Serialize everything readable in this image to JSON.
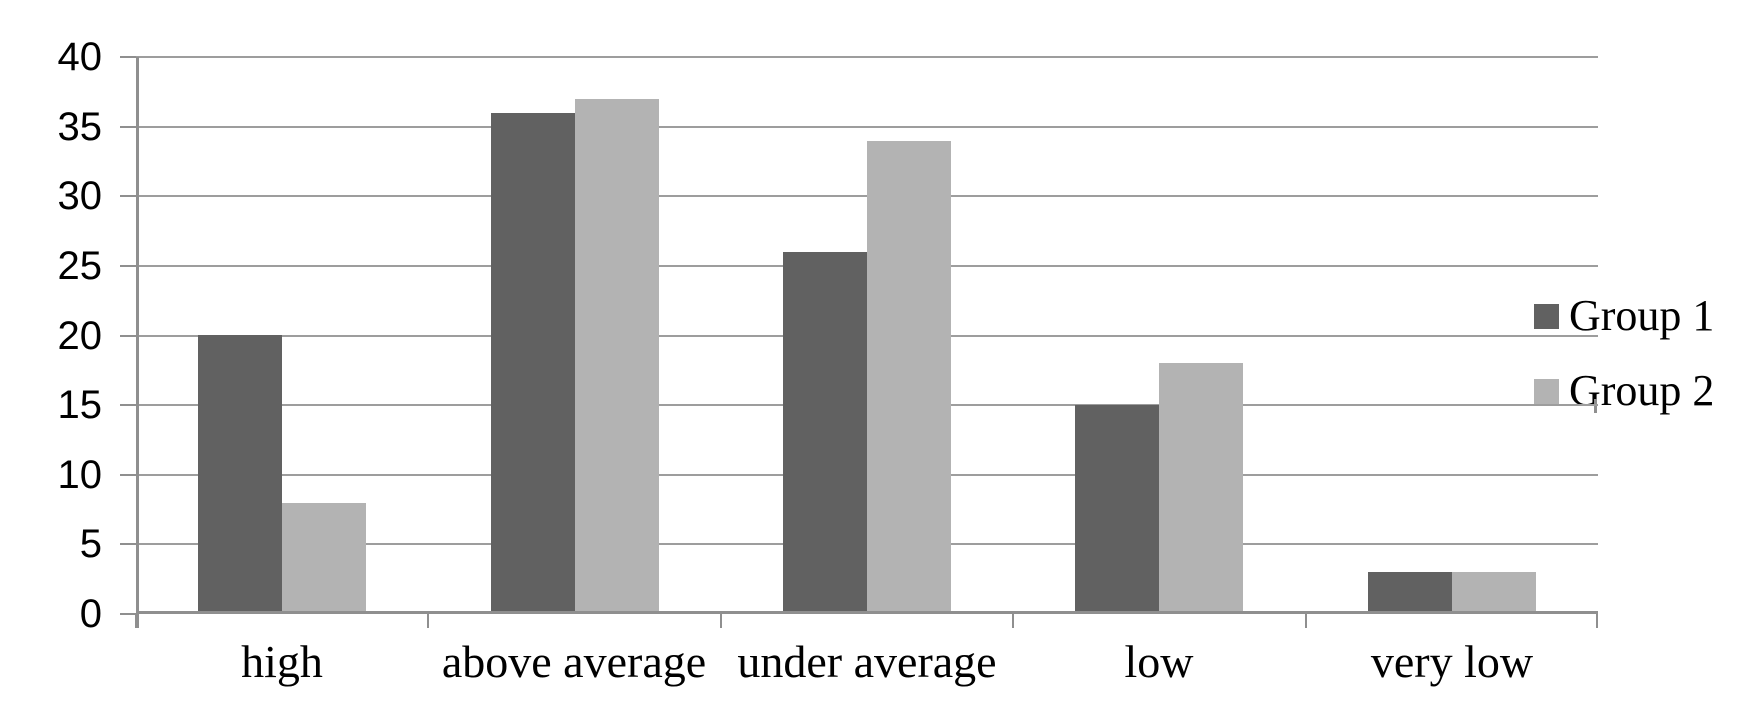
{
  "chart_data": {
    "type": "bar",
    "categories": [
      "high",
      "above average",
      "under average",
      "low",
      "very low"
    ],
    "series": [
      {
        "name": "Group 1",
        "color": "#616161",
        "values": [
          20,
          36,
          26,
          15,
          3
        ]
      },
      {
        "name": "Group 2",
        "color": "#b3b3b3",
        "values": [
          8,
          37,
          34,
          18,
          3
        ]
      }
    ],
    "ylim": [
      0,
      40
    ],
    "ytick_step": 5,
    "ytick_labels": [
      "0",
      "5",
      "10",
      "15",
      "20",
      "25",
      "30",
      "35",
      "40"
    ],
    "grid": true,
    "legend_position": "right",
    "legend": [
      {
        "label": "Group 1",
        "swatch_color": "#616161"
      },
      {
        "label": "Group 2",
        "swatch_color": "#b3b3b3"
      }
    ]
  },
  "colors": {
    "background": "#ffffff",
    "gridline": "#9d9d9d",
    "axis": "#8f8f8f",
    "text": "#000000"
  }
}
